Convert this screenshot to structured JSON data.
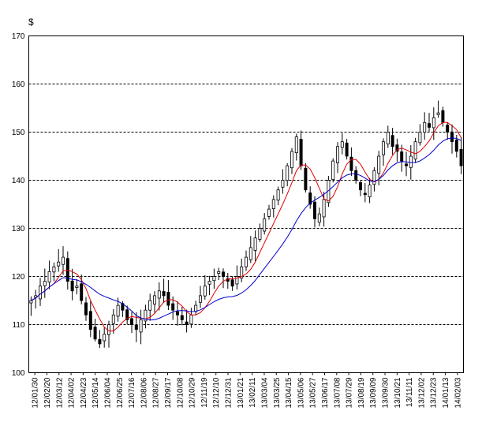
{
  "chart_data": {
    "type": "candlestick",
    "unit_label": "$",
    "ylim": [
      100,
      170
    ],
    "yticks": [
      "100",
      "110",
      "120",
      "130",
      "140",
      "150",
      "160",
      "170"
    ],
    "grid": "horizontal-dashed",
    "xtick_labels": [
      "12/01/30",
      "12/02/20",
      "12/03/12",
      "12/04/02",
      "12/04/23",
      "12/05/14",
      "12/06/04",
      "12/06/25",
      "12/07/16",
      "12/08/06",
      "12/08/27",
      "12/09/17",
      "12/10/08",
      "12/10/29",
      "12/11/19",
      "12/12/10",
      "12/12/31",
      "13/01/21",
      "13/02/11",
      "13/03/04",
      "13/03/25",
      "13/04/15",
      "13/05/06",
      "13/05/27",
      "13/06/17",
      "13/07/08",
      "13/07/29",
      "13/08/19",
      "13/09/09",
      "13/09/30",
      "13/10/21",
      "13/11/11",
      "13/12/02",
      "13/12/23",
      "14/01/13",
      "14/02/03"
    ],
    "weekly_closes": [
      115,
      116,
      118,
      119,
      121,
      122,
      123,
      124,
      119,
      117,
      118,
      115,
      112,
      109,
      107,
      106,
      108,
      110,
      112,
      114,
      113,
      111,
      110,
      109,
      111,
      113,
      115,
      116,
      117,
      116,
      114,
      113,
      112,
      111,
      110,
      112,
      114,
      116,
      118,
      119,
      120,
      121,
      120,
      119,
      118,
      120,
      122,
      124,
      126,
      128,
      130,
      132,
      134,
      136,
      138,
      140,
      143,
      146,
      149,
      143,
      138,
      135,
      132,
      133,
      136,
      140,
      144,
      147,
      148,
      145,
      142,
      140,
      138,
      137,
      139,
      142,
      145,
      148,
      150,
      147,
      146,
      144,
      143,
      145,
      148,
      150,
      152,
      151,
      153,
      154,
      152,
      150,
      148,
      146,
      143
    ],
    "series": [
      {
        "name": "",
        "color": "#e00000",
        "type": "moving-average"
      },
      {
        "name": "",
        "color": "#0000cc",
        "type": "moving-average"
      }
    ],
    "colors": {
      "up_body": "#ffffff",
      "down_body": "#000000",
      "ma_short": "#e00000",
      "ma_long": "#0000cc",
      "grid": "#000000"
    }
  }
}
